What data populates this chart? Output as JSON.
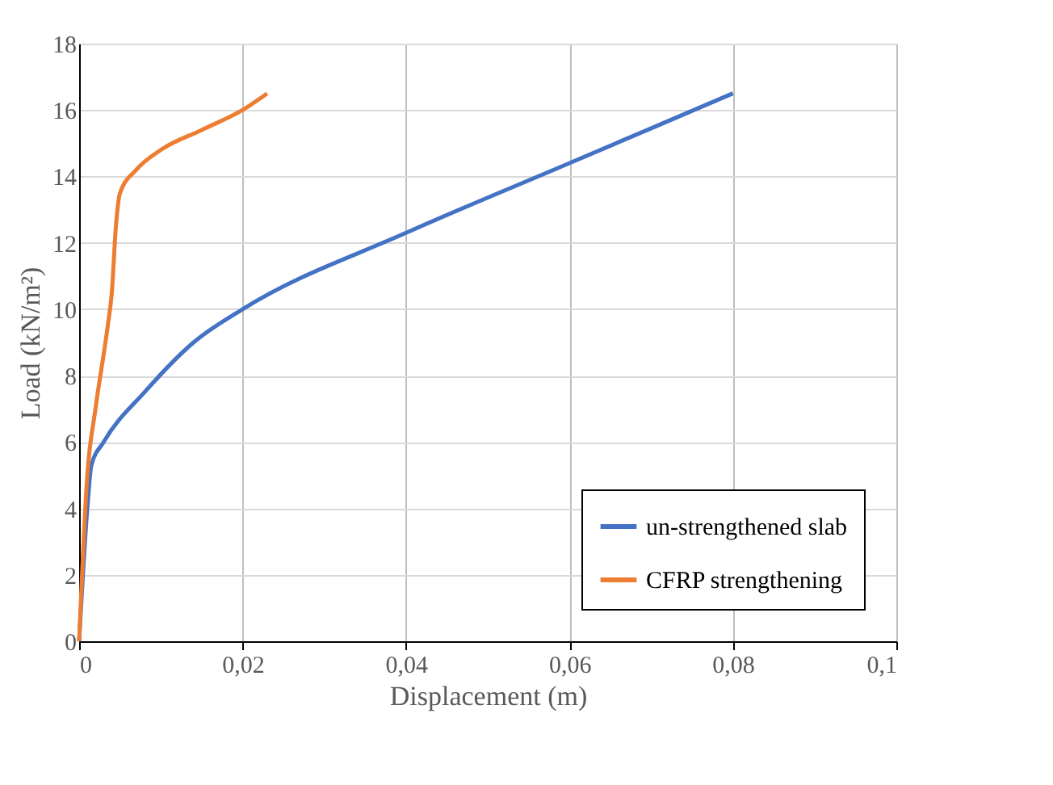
{
  "chart_data": {
    "type": "line",
    "xlabel": "Displacement (m)",
    "ylabel": "Load (kN/m²)",
    "xlim": [
      0,
      0.1
    ],
    "xticks": [
      0,
      {
        "value": 0.02,
        "label": "0,02"
      },
      {
        "value": 0.04,
        "label": "0,04"
      },
      {
        "value": 0.06,
        "label": "0,06"
      },
      {
        "value": 0.08,
        "label": "0,08"
      },
      {
        "value": 0.1,
        "label": "0,1"
      }
    ],
    "ylim": [
      0,
      18
    ],
    "yticks": [
      0,
      2,
      4,
      6,
      8,
      10,
      12,
      14,
      16,
      18
    ],
    "grid": true,
    "legend": "bottom right",
    "marker": "none",
    "line_style": "solid",
    "series": [
      {
        "name": "un-strengthened slab",
        "color": "#4472c4",
        "x": [
          0,
          0.001,
          0.0015,
          0.003,
          0.008,
          0.014,
          0.02,
          0.04,
          0.06,
          0.08
        ],
        "values": [
          0,
          4,
          5.3,
          6,
          7.5,
          9,
          10,
          12.3,
          14.4,
          16.5
        ]
      },
      {
        "name": "CFRP strengthening",
        "color": "#ed7d31",
        "x": [
          0,
          0.001,
          0.002,
          0.0035,
          0.004,
          0.0045,
          0.005,
          0.007,
          0.01,
          0.015,
          0.02,
          0.023
        ],
        "values": [
          0,
          5,
          7,
          9.5,
          10.5,
          12.5,
          13.5,
          14.2,
          14.8,
          15.4,
          16,
          16.5
        ]
      }
    ]
  }
}
